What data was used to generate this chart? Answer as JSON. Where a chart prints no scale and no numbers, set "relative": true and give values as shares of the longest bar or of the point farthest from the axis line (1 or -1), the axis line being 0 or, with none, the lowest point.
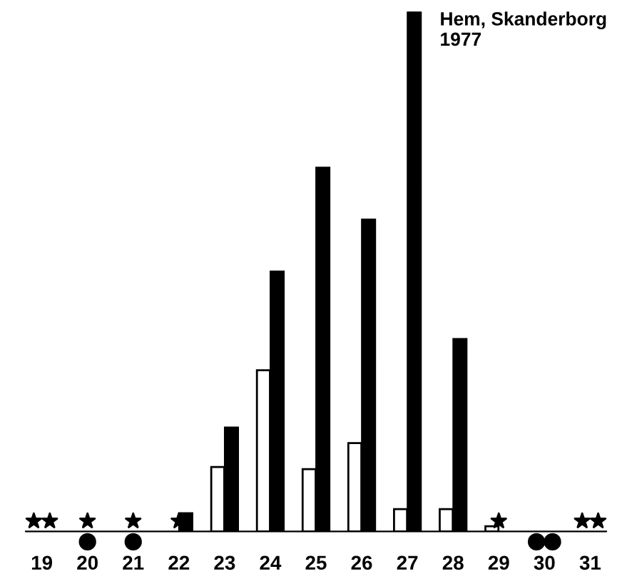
{
  "chart_data": {
    "type": "bar",
    "title": "Hem, Skanderborg\n1977",
    "relative": true,
    "categories": [
      "19",
      "20",
      "21",
      "22",
      "23",
      "24",
      "25",
      "26",
      "27",
      "28",
      "29",
      "30",
      "31"
    ],
    "series": [
      {
        "color": "#ffffff",
        "values": [
          null,
          null,
          null,
          null,
          0.124,
          0.31,
          0.12,
          0.17,
          0.043,
          0.043,
          0.01,
          null,
          null
        ]
      },
      {
        "color": "#000000",
        "values": [
          null,
          null,
          null,
          0.035,
          0.2,
          0.5,
          0.7,
          0.6,
          1,
          0.37,
          null,
          null,
          null
        ]
      },
      {
        "type": "scatter",
        "marker": "star",
        "color": "#000000",
        "x": [
          "19",
          "19",
          "20",
          "21",
          "22",
          "29",
          "31",
          "31"
        ],
        "values": [
          0.02,
          0.02,
          0.02,
          0.02,
          0.02,
          0.02,
          0.02,
          0.02
        ]
      },
      {
        "type": "scatter",
        "marker": "circle",
        "color": "#000000",
        "x": [
          "20",
          "21",
          "30",
          "30"
        ],
        "values": [
          -0.02,
          -0.02,
          -0.02,
          -0.02
        ]
      }
    ],
    "legend": false,
    "grid": false
  }
}
